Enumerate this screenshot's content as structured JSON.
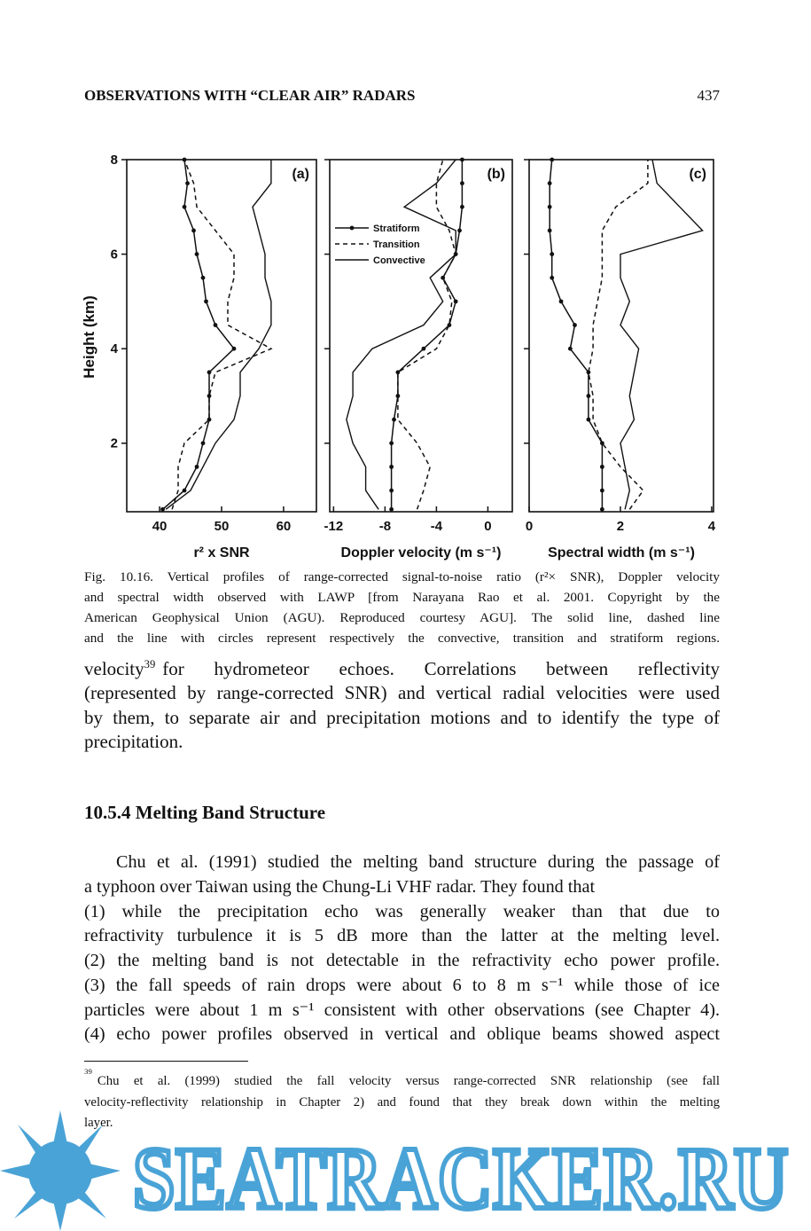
{
  "header": {
    "title": "OBSERVATIONS WITH “CLEAR AIR” RADARS",
    "page_number": "437"
  },
  "chart_data": [
    {
      "type": "line",
      "title": "(a)",
      "xlabel": "r² x SNR",
      "ylabel": "Height (km)",
      "xlim": [
        34.7,
        65.3
      ],
      "xticks": [
        40,
        50,
        60
      ],
      "ylim": [
        0.55,
        8
      ],
      "yticks": [
        2,
        4,
        6,
        8
      ],
      "y": [
        0.6,
        1.0,
        1.5,
        2.0,
        2.5,
        3.0,
        3.5,
        4.0,
        4.5,
        5.0,
        5.5,
        6.0,
        6.5,
        7.0,
        7.5,
        8.0
      ],
      "series": [
        {
          "style": "circles",
          "color": "#111111",
          "values": [
            40.5,
            44,
            46,
            47,
            48,
            48,
            48,
            52,
            49,
            47.5,
            47,
            46,
            45.5,
            44,
            44.5,
            44
          ]
        },
        {
          "style": "dashed",
          "color": "#111111",
          "values": [
            42,
            43,
            43,
            44,
            48,
            48,
            49,
            58,
            51,
            51,
            52,
            52,
            49,
            46,
            45.5,
            44
          ]
        },
        {
          "style": "solid",
          "color": "#111111",
          "values": [
            41,
            45,
            47,
            49,
            52,
            53,
            53,
            56,
            58,
            58,
            57,
            57,
            56,
            55,
            58,
            58
          ]
        }
      ]
    },
    {
      "type": "line",
      "title": "(b)",
      "xlabel": "Doppler velocity (m s⁻¹)",
      "xlim": [
        -12.3,
        1.9
      ],
      "xticks": [
        -12,
        -8,
        -4,
        0
      ],
      "ylim": [
        0.55,
        8
      ],
      "yticks": [
        2,
        4,
        6,
        8
      ],
      "y": [
        0.6,
        1.0,
        1.5,
        2.0,
        2.5,
        3.0,
        3.5,
        4.0,
        4.5,
        5.0,
        5.5,
        6.0,
        6.5,
        7.0,
        7.5,
        8.0
      ],
      "legend": "left",
      "series": [
        {
          "name": "Stratiform",
          "style": "circles",
          "color": "#111111",
          "values": [
            -7.5,
            -7.5,
            -7.5,
            -7.5,
            -7.3,
            -7,
            -7,
            -5,
            -3,
            -2.5,
            -3.5,
            -2.5,
            -2.2,
            -2,
            -2,
            -2
          ]
        },
        {
          "name": "Transition",
          "style": "dashed",
          "color": "#111111",
          "values": [
            -5.5,
            -5,
            -4.5,
            -5.5,
            -7,
            -7,
            -7,
            -4,
            -3,
            -2.8,
            -3.5,
            -2.5,
            -3,
            -4,
            -4,
            -3.5
          ]
        },
        {
          "name": "Convective",
          "style": "solid",
          "color": "#111111",
          "values": [
            -8.5,
            -9.5,
            -9.5,
            -10.5,
            -11,
            -10.5,
            -10.5,
            -9,
            -5,
            -3.5,
            -4.5,
            -2.5,
            -2.5,
            -6.5,
            -4,
            -2.5
          ]
        }
      ]
    },
    {
      "type": "line",
      "title": "(c)",
      "xlabel": "Spectral width (m s⁻¹)",
      "xlim": [
        0,
        4.04
      ],
      "xticks": [
        0,
        2,
        4
      ],
      "ylim": [
        0.55,
        8
      ],
      "yticks": [
        2,
        4,
        6,
        8
      ],
      "y": [
        0.6,
        1.0,
        1.5,
        2.0,
        2.5,
        3.0,
        3.5,
        4.0,
        4.5,
        5.0,
        5.5,
        6.0,
        6.5,
        7.0,
        7.5,
        8.0
      ],
      "series": [
        {
          "style": "circles",
          "color": "#111111",
          "values": [
            1.6,
            1.6,
            1.6,
            1.6,
            1.3,
            1.3,
            1.3,
            0.9,
            1.0,
            0.7,
            0.5,
            0.5,
            0.45,
            0.45,
            0.45,
            0.5
          ]
        },
        {
          "style": "dashed",
          "color": "#111111",
          "values": [
            2.2,
            2.5,
            2.0,
            1.6,
            1.4,
            1.4,
            1.3,
            1.4,
            1.4,
            1.5,
            1.6,
            1.6,
            1.6,
            1.9,
            2.6,
            2.6
          ]
        },
        {
          "style": "solid",
          "color": "#111111",
          "values": [
            2.1,
            2.2,
            2.1,
            2.0,
            2.3,
            2.2,
            2.3,
            2.4,
            2.0,
            2.2,
            2.0,
            2.0,
            3.8,
            3.3,
            2.8,
            2.7
          ]
        }
      ]
    }
  ],
  "caption": [
    "Fig. 10.16. Vertical profiles of range-corrected signal-to-noise ratio (r²× SNR), Doppler velocity",
    "and spectral width observed with LAWP [from Narayana Rao et al. 2001.  Copyright  by the",
    "American Geophysical  Union  (AGU). Reproduced courtesy AGU]. The solid line, dashed line",
    "and the line with circles represent respectively the convective, transition and stratiform regions."
  ],
  "paragraph_1": {
    "first_word": "velocity",
    "footnote_mark": "39",
    "first_line_rest": "for hydrometeor echoes. Correlations between reflectivity",
    "lines": [
      "(represented by range-corrected SNR) and vertical radial velocities were used",
      "by them, to separate air and precipitation motions and to identify the type of",
      "precipitation."
    ]
  },
  "section_heading": "10.5.4  Melting Band Structure",
  "paragraph_2": [
    "Chu et al. (1991) studied the melting band structure during  the passage  of",
    "a typhoon over Taiwan using the Chung-Li  VHF  radar. They found that",
    "(1)  while the precipitation echo was generally weaker than  that due to",
    "refractivity turbulence it is 5 dB more than the latter at the  melting  level.",
    "(2)  the melting band is not detectable in the refractivity  echo power profile.",
    "(3)   the fall speeds of rain drops were about 6 to 8 m s⁻¹  while those  of ice",
    "particles were about 1 m s⁻¹ consistent with  other observations (see Chapter 4).",
    "(4)  echo power profiles observed in vertical and  oblique  beams showed aspect"
  ],
  "footnote": {
    "mark": "39",
    "lines": [
      "Chu et al. (1999) studied the fall velocity versus range-corrected SNR relationship (see fall",
      "velocity-reflectivity relationship in Chapter 2) and found that they break down within the melting",
      "layer."
    ]
  },
  "watermark": "SEATRACKER.RU"
}
